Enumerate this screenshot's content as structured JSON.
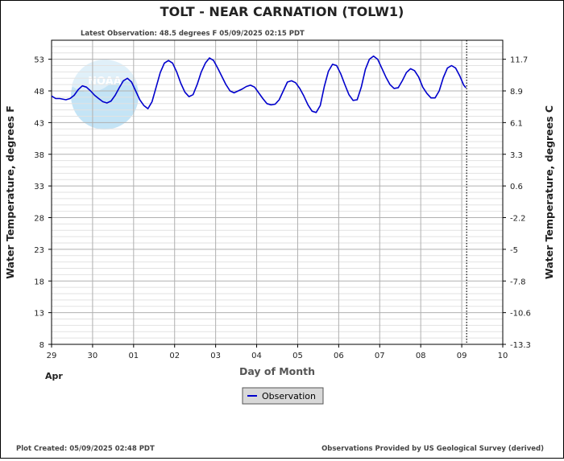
{
  "chart_data": {
    "type": "line",
    "title": "TOLT - NEAR CARNATION  (TOLW1)",
    "subtitle": "Latest Observation: 48.5 degrees F  05/09/2025 02:15 PDT",
    "xlabel": "Day of Month",
    "ylabel_left": "Water Temperature, degrees F",
    "ylabel_right": "Water Temperature, degrees C",
    "x_ticks": [
      "29",
      "30",
      "01",
      "02",
      "03",
      "04",
      "05",
      "06",
      "07",
      "08",
      "09",
      "10"
    ],
    "x_month_label": "Apr",
    "y_left_ticks": [
      "8",
      "13",
      "18",
      "23",
      "28",
      "33",
      "38",
      "43",
      "48",
      "53"
    ],
    "y_right_ticks": [
      "-13.3",
      "-10.6",
      "-7.8",
      "-5",
      "-2.2",
      "0.6",
      "3.3",
      "6.1",
      "8.9",
      "11.7"
    ],
    "ylim": [
      8,
      56
    ],
    "xlim": [
      0,
      11
    ],
    "grid": true,
    "latest_observation_day": 10.12,
    "legend": {
      "placement": "bottom-center",
      "label": "Observation"
    },
    "series": [
      {
        "name": "Observation",
        "color": "#0000cc",
        "points": [
          [
            0.0,
            47.2
          ],
          [
            0.1,
            46.8
          ],
          [
            0.2,
            46.8
          ],
          [
            0.35,
            46.6
          ],
          [
            0.45,
            46.8
          ],
          [
            0.55,
            47.3
          ],
          [
            0.65,
            48.2
          ],
          [
            0.75,
            48.8
          ],
          [
            0.85,
            48.6
          ],
          [
            0.95,
            48.0
          ],
          [
            1.05,
            47.3
          ],
          [
            1.15,
            46.8
          ],
          [
            1.25,
            46.3
          ],
          [
            1.35,
            46.1
          ],
          [
            1.45,
            46.4
          ],
          [
            1.55,
            47.3
          ],
          [
            1.65,
            48.5
          ],
          [
            1.75,
            49.6
          ],
          [
            1.85,
            50.0
          ],
          [
            1.95,
            49.4
          ],
          [
            2.05,
            48.0
          ],
          [
            2.15,
            46.6
          ],
          [
            2.25,
            45.7
          ],
          [
            2.35,
            45.2
          ],
          [
            2.45,
            46.3
          ],
          [
            2.55,
            48.6
          ],
          [
            2.65,
            50.9
          ],
          [
            2.75,
            52.4
          ],
          [
            2.85,
            52.8
          ],
          [
            2.95,
            52.4
          ],
          [
            3.05,
            51.0
          ],
          [
            3.15,
            49.2
          ],
          [
            3.25,
            47.8
          ],
          [
            3.35,
            47.1
          ],
          [
            3.45,
            47.4
          ],
          [
            3.55,
            49.0
          ],
          [
            3.65,
            51.0
          ],
          [
            3.75,
            52.4
          ],
          [
            3.85,
            53.2
          ],
          [
            3.95,
            52.8
          ],
          [
            4.05,
            51.6
          ],
          [
            4.15,
            50.3
          ],
          [
            4.25,
            49.0
          ],
          [
            4.35,
            48.0
          ],
          [
            4.45,
            47.7
          ],
          [
            4.55,
            48.0
          ],
          [
            4.65,
            48.3
          ],
          [
            4.75,
            48.7
          ],
          [
            4.85,
            48.9
          ],
          [
            4.95,
            48.6
          ],
          [
            5.05,
            47.7
          ],
          [
            5.15,
            46.8
          ],
          [
            5.25,
            46.0
          ],
          [
            5.35,
            45.8
          ],
          [
            5.45,
            45.9
          ],
          [
            5.55,
            46.6
          ],
          [
            5.65,
            48.0
          ],
          [
            5.75,
            49.4
          ],
          [
            5.85,
            49.6
          ],
          [
            5.95,
            49.3
          ],
          [
            6.05,
            48.4
          ],
          [
            6.15,
            47.2
          ],
          [
            6.25,
            45.8
          ],
          [
            6.35,
            44.8
          ],
          [
            6.45,
            44.6
          ],
          [
            6.55,
            45.7
          ],
          [
            6.65,
            48.7
          ],
          [
            6.75,
            51.1
          ],
          [
            6.85,
            52.2
          ],
          [
            6.95,
            52.0
          ],
          [
            7.05,
            50.7
          ],
          [
            7.15,
            49.0
          ],
          [
            7.25,
            47.4
          ],
          [
            7.35,
            46.5
          ],
          [
            7.45,
            46.6
          ],
          [
            7.55,
            48.6
          ],
          [
            7.65,
            51.4
          ],
          [
            7.75,
            53.0
          ],
          [
            7.85,
            53.5
          ],
          [
            7.95,
            53.0
          ],
          [
            8.05,
            51.6
          ],
          [
            8.15,
            50.2
          ],
          [
            8.25,
            49.0
          ],
          [
            8.35,
            48.4
          ],
          [
            8.45,
            48.5
          ],
          [
            8.55,
            49.6
          ],
          [
            8.65,
            50.9
          ],
          [
            8.75,
            51.5
          ],
          [
            8.85,
            51.2
          ],
          [
            8.95,
            50.2
          ],
          [
            9.05,
            48.6
          ],
          [
            9.15,
            47.6
          ],
          [
            9.25,
            46.9
          ],
          [
            9.35,
            46.9
          ],
          [
            9.45,
            48.0
          ],
          [
            9.55,
            50.1
          ],
          [
            9.65,
            51.6
          ],
          [
            9.75,
            52.0
          ],
          [
            9.85,
            51.6
          ],
          [
            9.95,
            50.4
          ],
          [
            10.05,
            48.9
          ],
          [
            10.1,
            48.5
          ]
        ]
      }
    ]
  },
  "footer": {
    "plot_created": "Plot Created: 05/09/2025 02:48 PDT",
    "provided_by": "Observations Provided by US Geological Survey (derived)"
  },
  "logo": {
    "text": "NOAA",
    "color": "#87c8ec"
  }
}
